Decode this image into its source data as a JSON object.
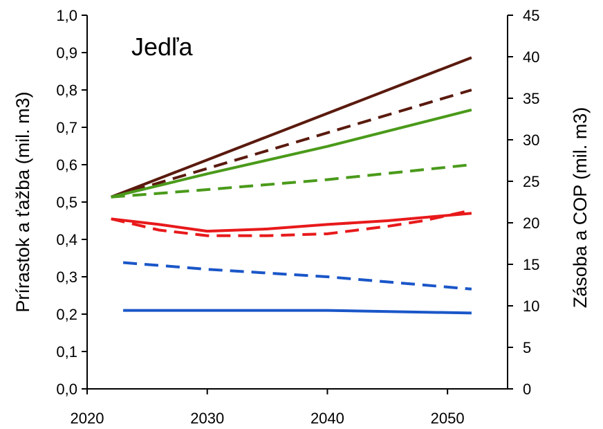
{
  "chart_data": {
    "type": "line",
    "title": "Jedľa",
    "ylabel_left": "Prírastok a ťažba (mil. m3)",
    "ylabel_right": "Zásoba a COP (mil. m3)",
    "xlim": [
      2020,
      2055
    ],
    "ylim_left": [
      0.0,
      1.0
    ],
    "ylim_right": [
      0,
      45
    ],
    "x_ticks": [
      "2020",
      "2030",
      "2040",
      "2050"
    ],
    "y_left_ticks": [
      "0,0",
      "0,1",
      "0,2",
      "0,3",
      "0,4",
      "0,5",
      "0,6",
      "0,7",
      "0,8",
      "0,9",
      "1,0"
    ],
    "y_right_ticks": [
      "0",
      "5",
      "10",
      "15",
      "20",
      "25",
      "30",
      "35",
      "40",
      "45"
    ],
    "grid": false,
    "legend": "none",
    "series": [
      {
        "axis": "right",
        "color": "#5a1a0e",
        "dash": false,
        "x": [
          2022,
          2052
        ],
        "y": [
          23.1,
          39.9
        ]
      },
      {
        "axis": "right",
        "color": "#5a1a0e",
        "dash": true,
        "x": [
          2022,
          2052
        ],
        "y": [
          23.1,
          36.0
        ]
      },
      {
        "axis": "right",
        "color": "#4a9a1a",
        "dash": false,
        "x": [
          2022,
          2030,
          2040,
          2052
        ],
        "y": [
          23.1,
          25.9,
          29.2,
          33.6
        ]
      },
      {
        "axis": "right",
        "color": "#4a9a1a",
        "dash": true,
        "x": [
          2022,
          2030,
          2040,
          2052
        ],
        "y": [
          23.1,
          24.0,
          25.2,
          27.0
        ]
      },
      {
        "axis": "left",
        "color": "#e8191b",
        "dash": false,
        "x": [
          2022,
          2026,
          2030,
          2035,
          2040,
          2045,
          2052
        ],
        "y": [
          0.455,
          0.44,
          0.422,
          0.428,
          0.44,
          0.45,
          0.47
        ]
      },
      {
        "axis": "left",
        "color": "#e8191b",
        "dash": true,
        "x": [
          2022,
          2026,
          2030,
          2035,
          2040,
          2045,
          2048,
          2052
        ],
        "y": [
          0.455,
          0.425,
          0.41,
          0.41,
          0.415,
          0.435,
          0.45,
          0.478
        ]
      },
      {
        "axis": "left",
        "color": "#1a56c8",
        "dash": true,
        "x": [
          2023,
          2030,
          2040,
          2052
        ],
        "y": [
          0.338,
          0.32,
          0.3,
          0.267
        ]
      },
      {
        "axis": "left",
        "color": "#1a56c8",
        "dash": false,
        "x": [
          2023,
          2030,
          2040,
          2052
        ],
        "y": [
          0.21,
          0.21,
          0.21,
          0.203
        ]
      }
    ]
  }
}
